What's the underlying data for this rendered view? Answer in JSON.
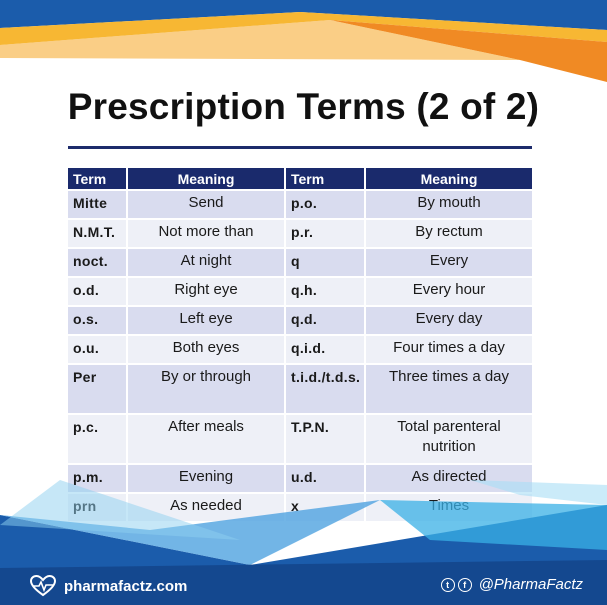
{
  "title": "Prescription Terms (2 of 2)",
  "colors": {
    "header": "#1a2a6c",
    "row_odd": "#d9dcef",
    "row_even": "#eef0f7",
    "orange": "#f5a623",
    "blue": "#1b5cab"
  },
  "table": {
    "headers": [
      "Term",
      "Meaning",
      "Term",
      "Meaning"
    ],
    "rows": [
      [
        "Mitte",
        "Send",
        "p.o.",
        "By mouth"
      ],
      [
        "N.M.T.",
        "Not more than",
        "p.r.",
        "By rectum"
      ],
      [
        "noct.",
        "At night",
        "q",
        "Every"
      ],
      [
        "o.d.",
        "Right eye",
        "q.h.",
        "Every hour"
      ],
      [
        "o.s.",
        "Left eye",
        "q.d.",
        "Every day"
      ],
      [
        "o.u.",
        "Both eyes",
        "q.i.d.",
        "Four times a day"
      ],
      [
        "Per",
        "By or through",
        "t.i.d./t.d.s.",
        "Three times a day"
      ],
      [
        "p.c.",
        "After meals",
        "T.P.N.",
        "Total parenteral nutrition"
      ],
      [
        "p.m.",
        "Evening",
        "u.d.",
        "As directed"
      ],
      [
        "prn",
        "As needed",
        "x",
        "Times"
      ]
    ]
  },
  "footer": {
    "brand": "pharmafactz.com",
    "brand_icon": "heart-pulse-icon",
    "social_icons": [
      "twitter-icon",
      "facebook-icon"
    ],
    "handle": "@PharmaFactz"
  }
}
